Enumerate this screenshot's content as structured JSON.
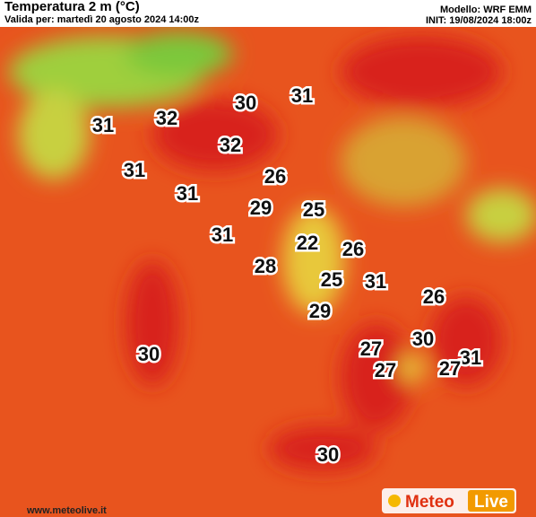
{
  "header": {
    "title": "Temperatura 2 m (°C)",
    "valid": "Valida per: martedì 20 agosto 2024 14:00z",
    "model": "Modello: WRF EMM",
    "init": "INIT: 19/08/2024 18:00z"
  },
  "temperatures": [
    31,
    30,
    32,
    31,
    32,
    31,
    26,
    31,
    29,
    25,
    31,
    22,
    26,
    28,
    25,
    31,
    26,
    29,
    30,
    27,
    30,
    31,
    27,
    27,
    30
  ],
  "footer": {
    "site": "www.meteolive.it",
    "logo_a": "Meteo",
    "logo_b": "Live"
  }
}
